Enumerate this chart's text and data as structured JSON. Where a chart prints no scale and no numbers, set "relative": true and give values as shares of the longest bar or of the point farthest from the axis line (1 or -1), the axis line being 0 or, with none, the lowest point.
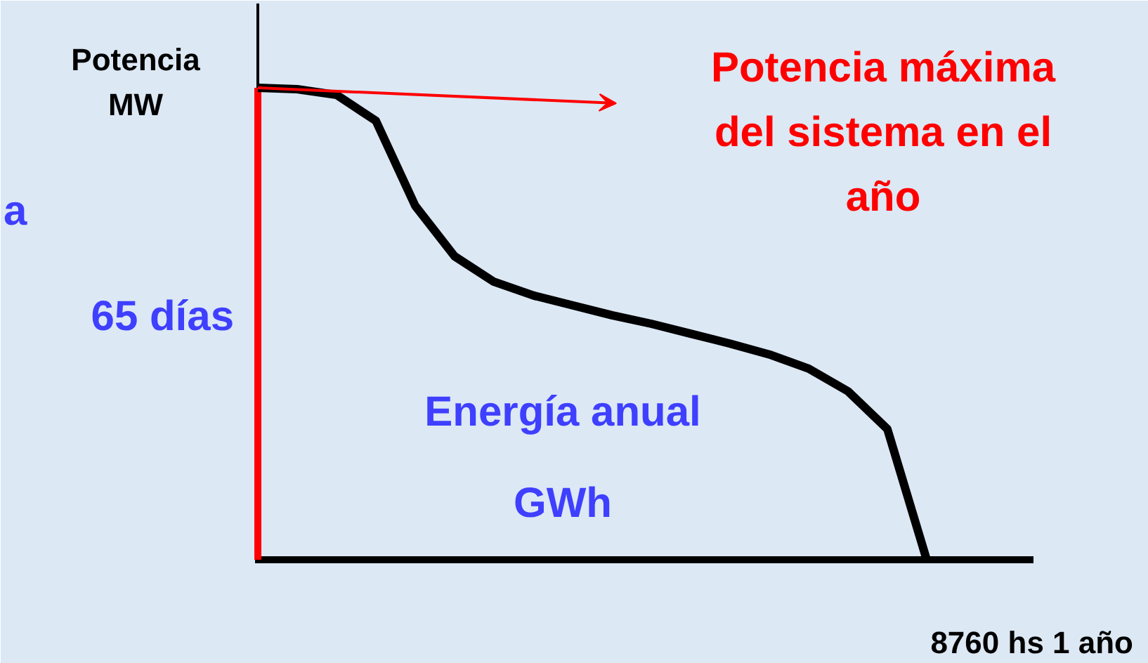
{
  "chart_data": {
    "type": "line",
    "relative": true,
    "ylabel": "Potencia MW",
    "xlabel": "8760 hs 1 año",
    "annotations": [
      "Potencia máxima del sistema en el año",
      "Energía anual GWh",
      "a",
      "65 días"
    ],
    "categories": [
      null,
      null,
      null,
      null,
      null,
      null,
      null,
      null,
      null,
      null,
      null,
      null,
      null,
      null,
      null,
      null,
      null,
      null
    ],
    "series": [
      {
        "color": "#000000",
        "values": [
          1,
          0.997,
          0.985,
          0.93,
          0.75,
          0.643,
          0.589,
          0.56,
          0.539,
          0.518,
          0.5,
          0.479,
          0.458,
          0.435,
          0.405,
          0.357,
          0.277,
          0
        ]
      }
    ],
    "grid": false,
    "marker": "none",
    "line_style": "solid"
  }
}
